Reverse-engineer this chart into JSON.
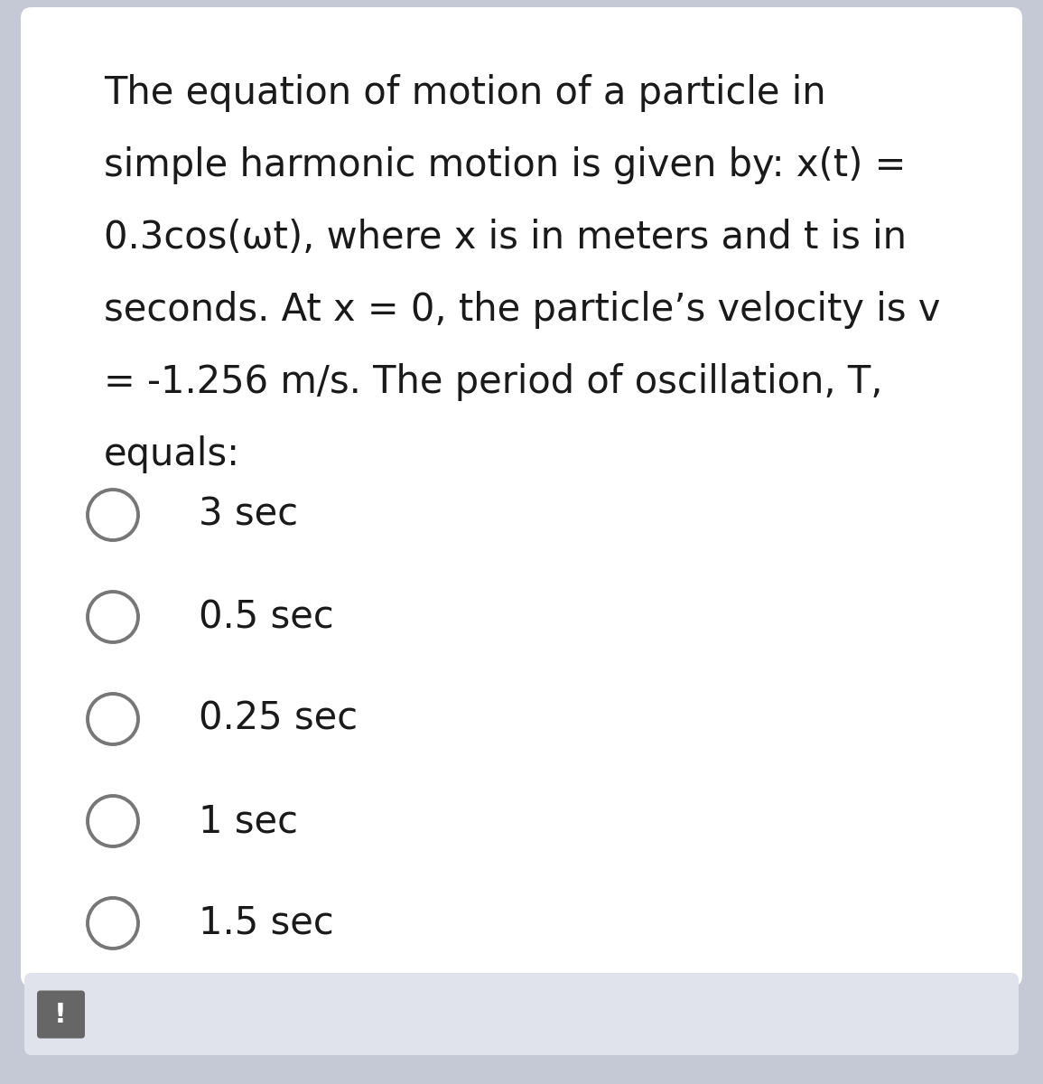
{
  "background_color": "#c5c9d6",
  "card_color": "#ffffff",
  "question_text_lines": [
    "The equation of motion of a particle in",
    "simple harmonic motion is given by: x(t) =",
    "0.3cos(ωt), where x is in meters and t is in",
    "seconds. At x = 0, the particle’s velocity is v",
    "= -1.256 m/s. The period of oscillation, T,",
    "equals:"
  ],
  "options": [
    "3 sec",
    "0.5 sec",
    "0.25 sec",
    "1 sec",
    "1.5 sec"
  ],
  "text_color": "#1a1a1a",
  "circle_edge_color": "#777777",
  "circle_face_color": "#ffffff",
  "font_size_question": 30,
  "font_size_options": 30,
  "footer_icon_color": "#666666",
  "footer_bg": "#e0e3ec"
}
